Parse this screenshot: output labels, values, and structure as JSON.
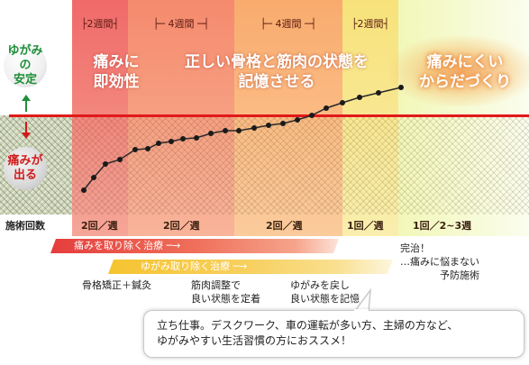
{
  "left_labels": {
    "stable": "ゆがみの\n安定",
    "pain": "痛みが\n出る",
    "freq_header": "施術回数"
  },
  "weeks": [
    {
      "label": "├2週間┤"
    },
    {
      "label": "├─ 4週間 ─┤"
    },
    {
      "label": "├─ 4週間 ─┤"
    },
    {
      "label": "├2週間┤"
    }
  ],
  "phases": [
    {
      "text": "痛みに\n即効性"
    },
    {
      "text": "正しい骨格と筋肉の状態を\n記憶させる"
    },
    {
      "text": "痛みにくい\nからだづくり"
    }
  ],
  "frequencies": [
    "2回／週",
    "2回／週",
    "2回／週",
    "1回／週",
    "1回／2~3週"
  ],
  "bars": {
    "pain": "痛みを取り除く治療 ─→",
    "distort": "ゆがみ取り除く治療 ─→"
  },
  "notes": [
    "骨格矯正＋鍼灸",
    "筋肉調整で\n良い状態を定着",
    "ゆがみを戻し\n良い状態を記憶",
    "完治！\n…痛みに悩まない\n　　　　予防施術"
  ],
  "callout": "立ち仕事。デスクワーク、車の運転が多い方、主婦の方など、\nゆがみやすい生活習慣の方におススメ！",
  "colors": {
    "threshold": "#e11a1a",
    "stable_text": "#1f8f3a",
    "pain_text": "#d11a1a",
    "pain_bar": "#e53d3d",
    "distort_bar": "#f6c430"
  }
}
